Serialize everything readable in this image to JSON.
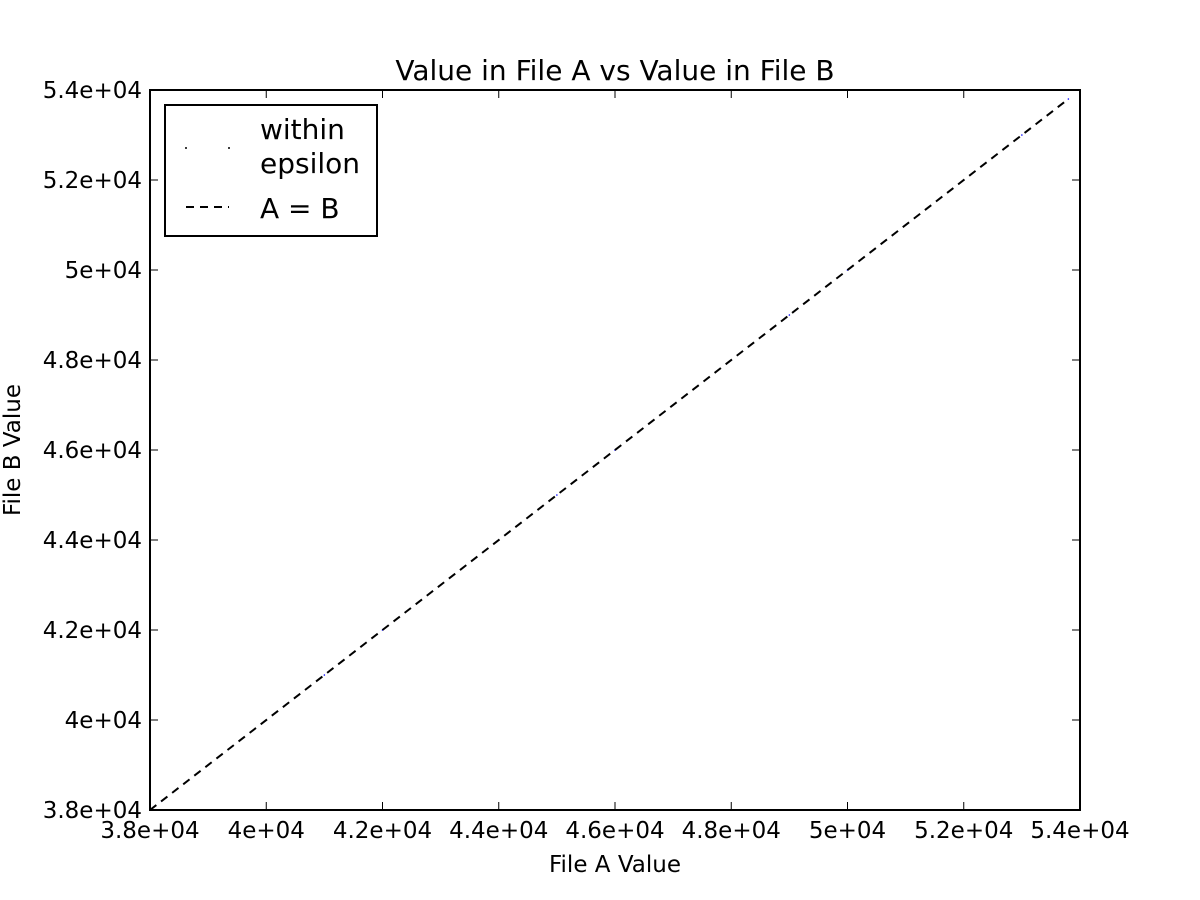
{
  "chart_data": {
    "type": "scatter",
    "title": "Value in File A vs Value in File B",
    "xlabel": "File A Value",
    "ylabel": "File B Value",
    "xlim": [
      38000,
      54000
    ],
    "ylim": [
      38000,
      54000
    ],
    "x_ticks": [
      {
        "value": 38000,
        "label": "3.8e+04"
      },
      {
        "value": 40000,
        "label": "4e+04"
      },
      {
        "value": 42000,
        "label": "4.2e+04"
      },
      {
        "value": 44000,
        "label": "4.4e+04"
      },
      {
        "value": 46000,
        "label": "4.6e+04"
      },
      {
        "value": 48000,
        "label": "4.8e+04"
      },
      {
        "value": 50000,
        "label": "5e+04"
      },
      {
        "value": 52000,
        "label": "5.2e+04"
      },
      {
        "value": 54000,
        "label": "5.4e+04"
      }
    ],
    "y_ticks": [
      {
        "value": 38000,
        "label": "3.8e+04"
      },
      {
        "value": 40000,
        "label": "4e+04"
      },
      {
        "value": 42000,
        "label": "4.2e+04"
      },
      {
        "value": 44000,
        "label": "4.4e+04"
      },
      {
        "value": 46000,
        "label": "4.6e+04"
      },
      {
        "value": 48000,
        "label": "4.8e+04"
      },
      {
        "value": 50000,
        "label": "5e+04"
      },
      {
        "value": 52000,
        "label": "5.2e+04"
      },
      {
        "value": 54000,
        "label": "5.4e+04"
      }
    ],
    "grid": false,
    "legend_position": "top-left",
    "series": [
      {
        "name": "within epsilon",
        "style": "points",
        "color": "#0000ff",
        "x": [
          38200,
          39000,
          40000,
          41000,
          42000,
          43000,
          44000,
          45000,
          46000,
          47000,
          48000,
          49000,
          50000,
          51000,
          52000,
          53000,
          53800
        ],
        "y": [
          38200,
          39000,
          40000,
          41000,
          42000,
          43000,
          44000,
          45000,
          46000,
          47000,
          48000,
          49000,
          50000,
          51000,
          52000,
          53000,
          53800
        ]
      },
      {
        "name": "A = B",
        "style": "dashed-line",
        "color": "#000000",
        "x": [
          38000,
          53800
        ],
        "y": [
          38000,
          53800
        ]
      }
    ],
    "legend": {
      "entries": [
        "within\nepsilon",
        "A = B"
      ]
    }
  }
}
